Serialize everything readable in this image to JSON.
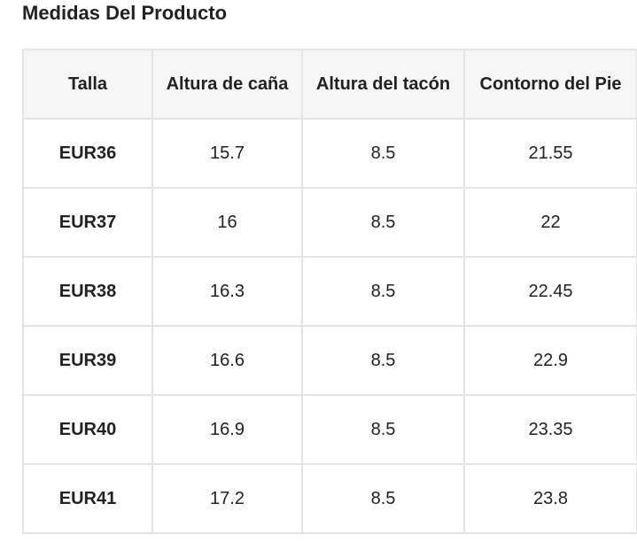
{
  "title": "Medidas Del Producto",
  "table": {
    "headers": [
      "Talla",
      "Altura de caña",
      "Altura del tacón",
      "Contorno del Pie"
    ],
    "rows": [
      [
        "EUR36",
        "15.7",
        "8.5",
        "21.55"
      ],
      [
        "EUR37",
        "16",
        "8.5",
        "22"
      ],
      [
        "EUR38",
        "16.3",
        "8.5",
        "22.45"
      ],
      [
        "EUR39",
        "16.6",
        "8.5",
        "22.9"
      ],
      [
        "EUR40",
        "16.9",
        "8.5",
        "23.35"
      ],
      [
        "EUR41",
        "17.2",
        "8.5",
        "23.8"
      ]
    ]
  },
  "colors": {
    "text": "#222222",
    "header_background": "#f6f6f6",
    "border": "#e4e4e4"
  }
}
